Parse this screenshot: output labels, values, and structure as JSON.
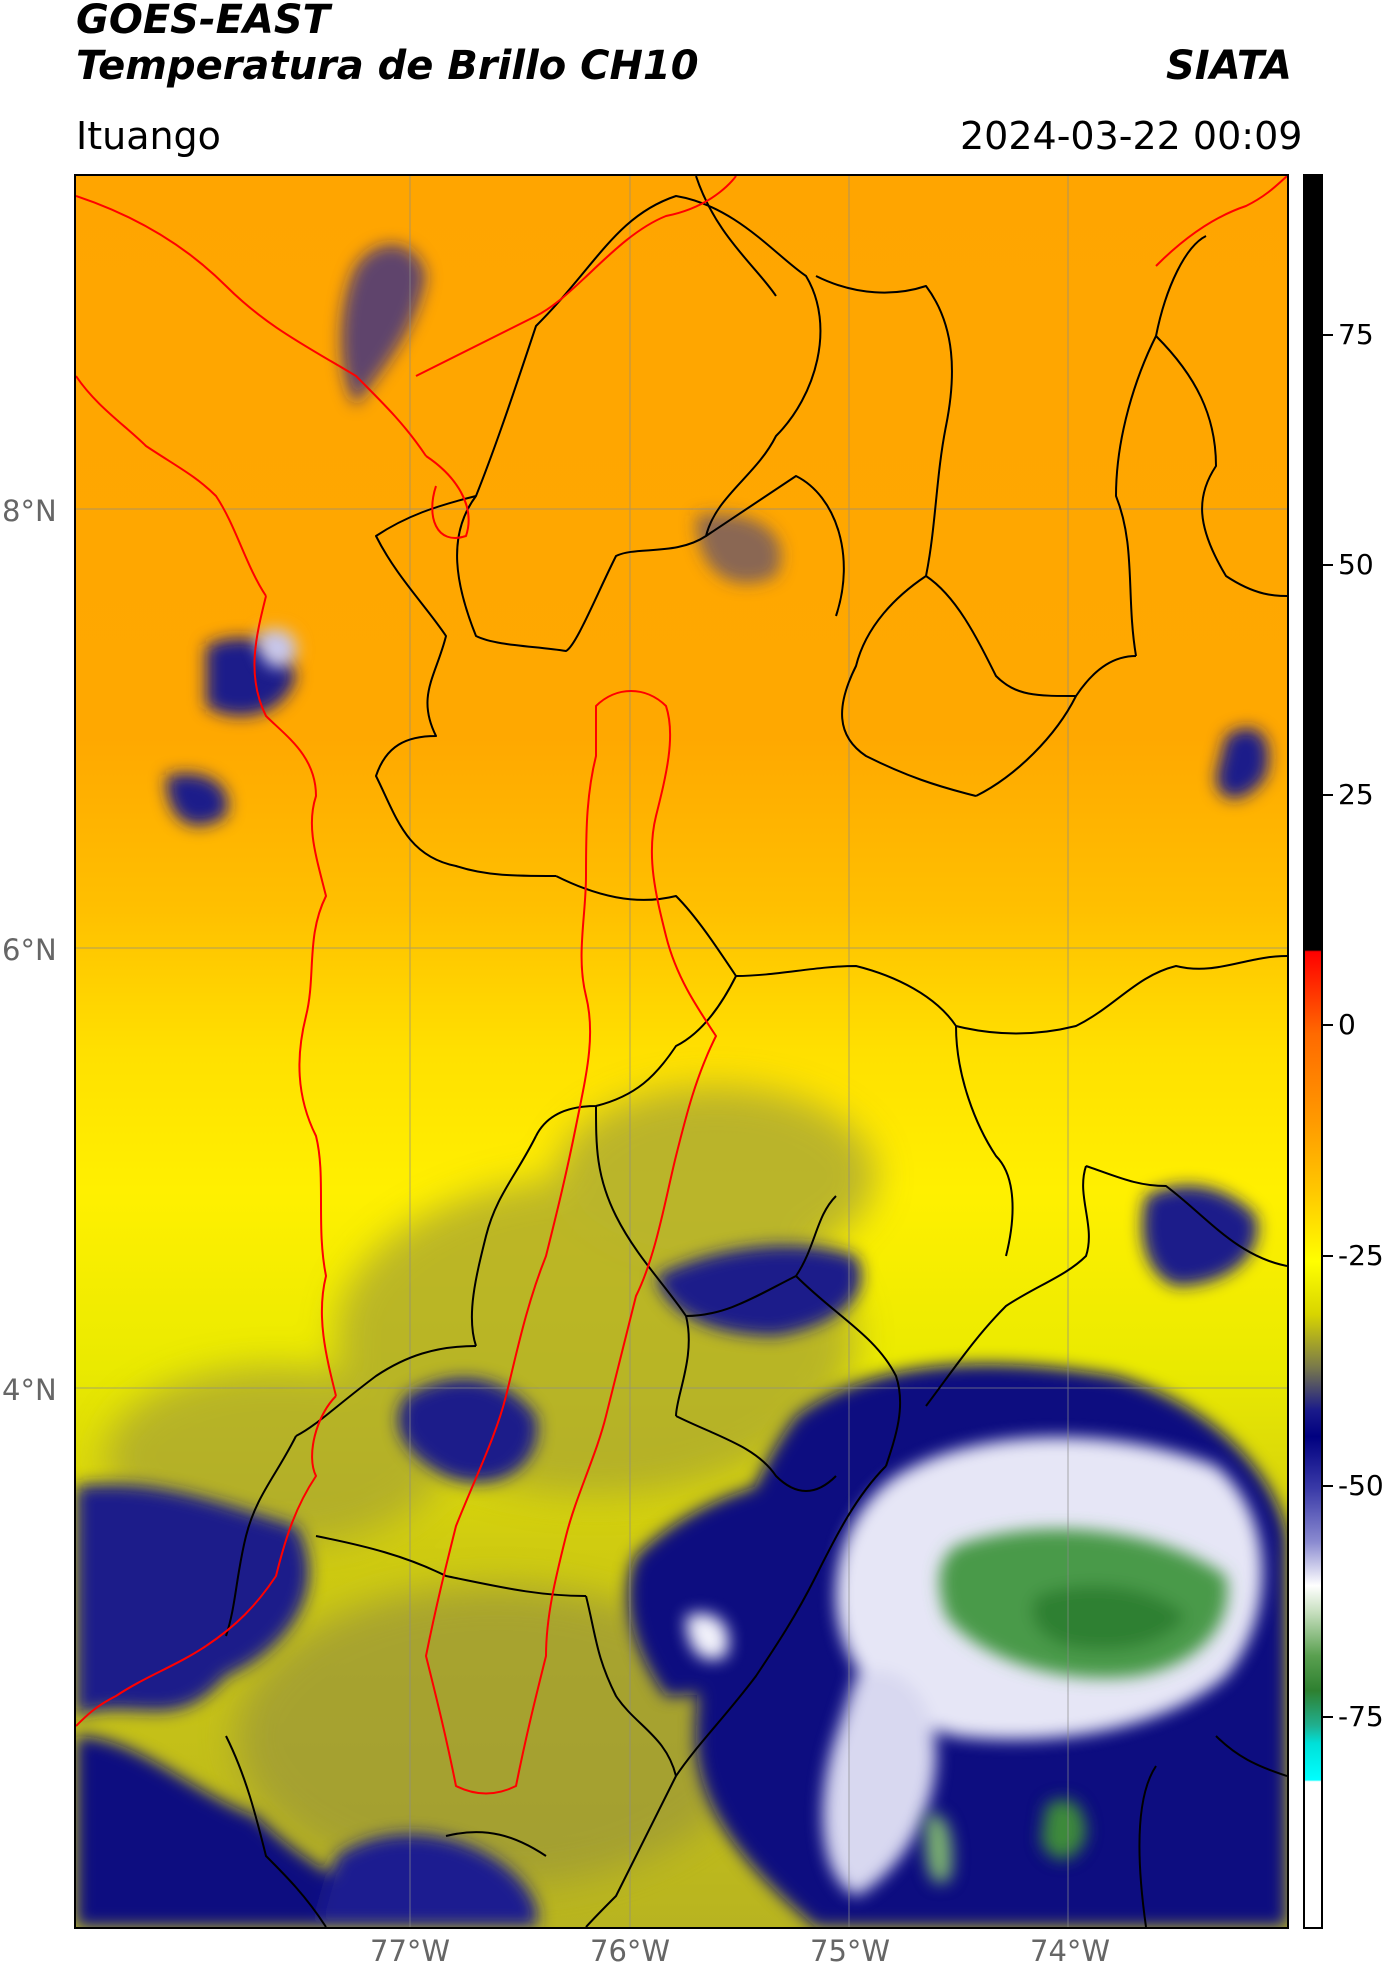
{
  "header": {
    "title_line1": "GOES-EAST",
    "title_line2": "Temperatura de Brillo CH10",
    "brand": "SIATA",
    "location": "Ituango",
    "timestamp": "2024-03-22 00:09"
  },
  "map": {
    "longitude_labels": [
      "77°W",
      "76°W",
      "75°W",
      "74°W"
    ],
    "latitude_labels": [
      "8°N",
      "6°N",
      "4°N"
    ],
    "colors": {
      "warm": "#ffa500",
      "mild": "#ffff00",
      "cool": "#c8c400",
      "cold": "#000080",
      "very_cold": "#ffffff",
      "coldest": "#2e8030",
      "borders": "#000000",
      "basin": "#ff0000"
    }
  },
  "colorbar": {
    "ticks": [
      "75",
      "50",
      "25",
      "0",
      "-25",
      "-50",
      "-75"
    ],
    "colors": [
      "#000000",
      "#ff0000",
      "#ffa500",
      "#ffff00",
      "#000080",
      "#ffffff",
      "#2e8030",
      "#00ffff"
    ]
  }
}
